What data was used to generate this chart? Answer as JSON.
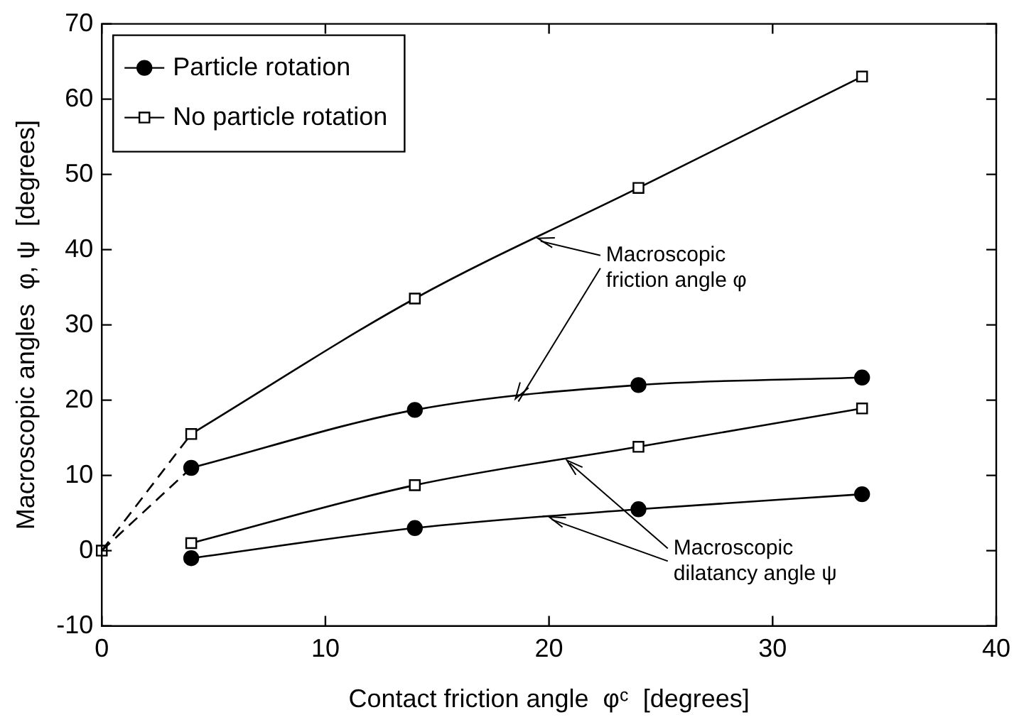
{
  "chart_data": {
    "type": "line",
    "xlabel": "Contact friction angle  φᶜ  [degrees]",
    "ylabel": "Macroscopic angles  φ, ψ  [degrees]",
    "xlim": [
      0,
      40
    ],
    "xticks": [
      0,
      10,
      20,
      30,
      40
    ],
    "ylim": [
      -10,
      70
    ],
    "yticks": [
      -10,
      0,
      10,
      20,
      30,
      40,
      50,
      60,
      70
    ],
    "grid": false,
    "legend": "top left",
    "series": [
      {
        "name": "Particle rotation",
        "color": "#000000",
        "marker": "circle",
        "line_style": "solid",
        "x": [
          4,
          14,
          24,
          34
        ],
        "values": [
          11,
          18.7,
          22,
          23
        ]
      },
      {
        "name": "No particle rotation",
        "color": "#000000",
        "marker": "square",
        "line_style": "solid",
        "x": [
          4,
          14,
          24,
          34
        ],
        "values": [
          15.5,
          33.5,
          48.2,
          63
        ]
      },
      {
        "color": "#000000",
        "marker": "square",
        "line_style": "solid",
        "x": [
          4,
          14,
          24,
          34
        ],
        "values": [
          1,
          8.7,
          13.8,
          18.9
        ]
      },
      {
        "color": "#000000",
        "marker": "circle",
        "line_style": "solid",
        "x": [
          4,
          14,
          24,
          34
        ],
        "values": [
          -1,
          3,
          5.5,
          7.5
        ]
      },
      {
        "color": "#000000",
        "marker": "none",
        "line_style": "dashed",
        "x": [
          0,
          4
        ],
        "values": [
          0,
          15.5
        ]
      },
      {
        "color": "#000000",
        "marker": "none",
        "line_style": "dashed",
        "x": [
          0,
          4
        ],
        "values": [
          0,
          11
        ]
      },
      {
        "type": "scatter",
        "color": "#000000",
        "marker": "square",
        "x": [
          0
        ],
        "values": [
          0
        ]
      }
    ],
    "annotations": [
      {
        "text": "Macroscopic\nfriction angle φ",
        "x": 19.5,
        "y": 41.5
      },
      {
        "text": "Macroscopic\ndilatancy angle ψ",
        "x": 20.8,
        "y": 12
      }
    ]
  }
}
